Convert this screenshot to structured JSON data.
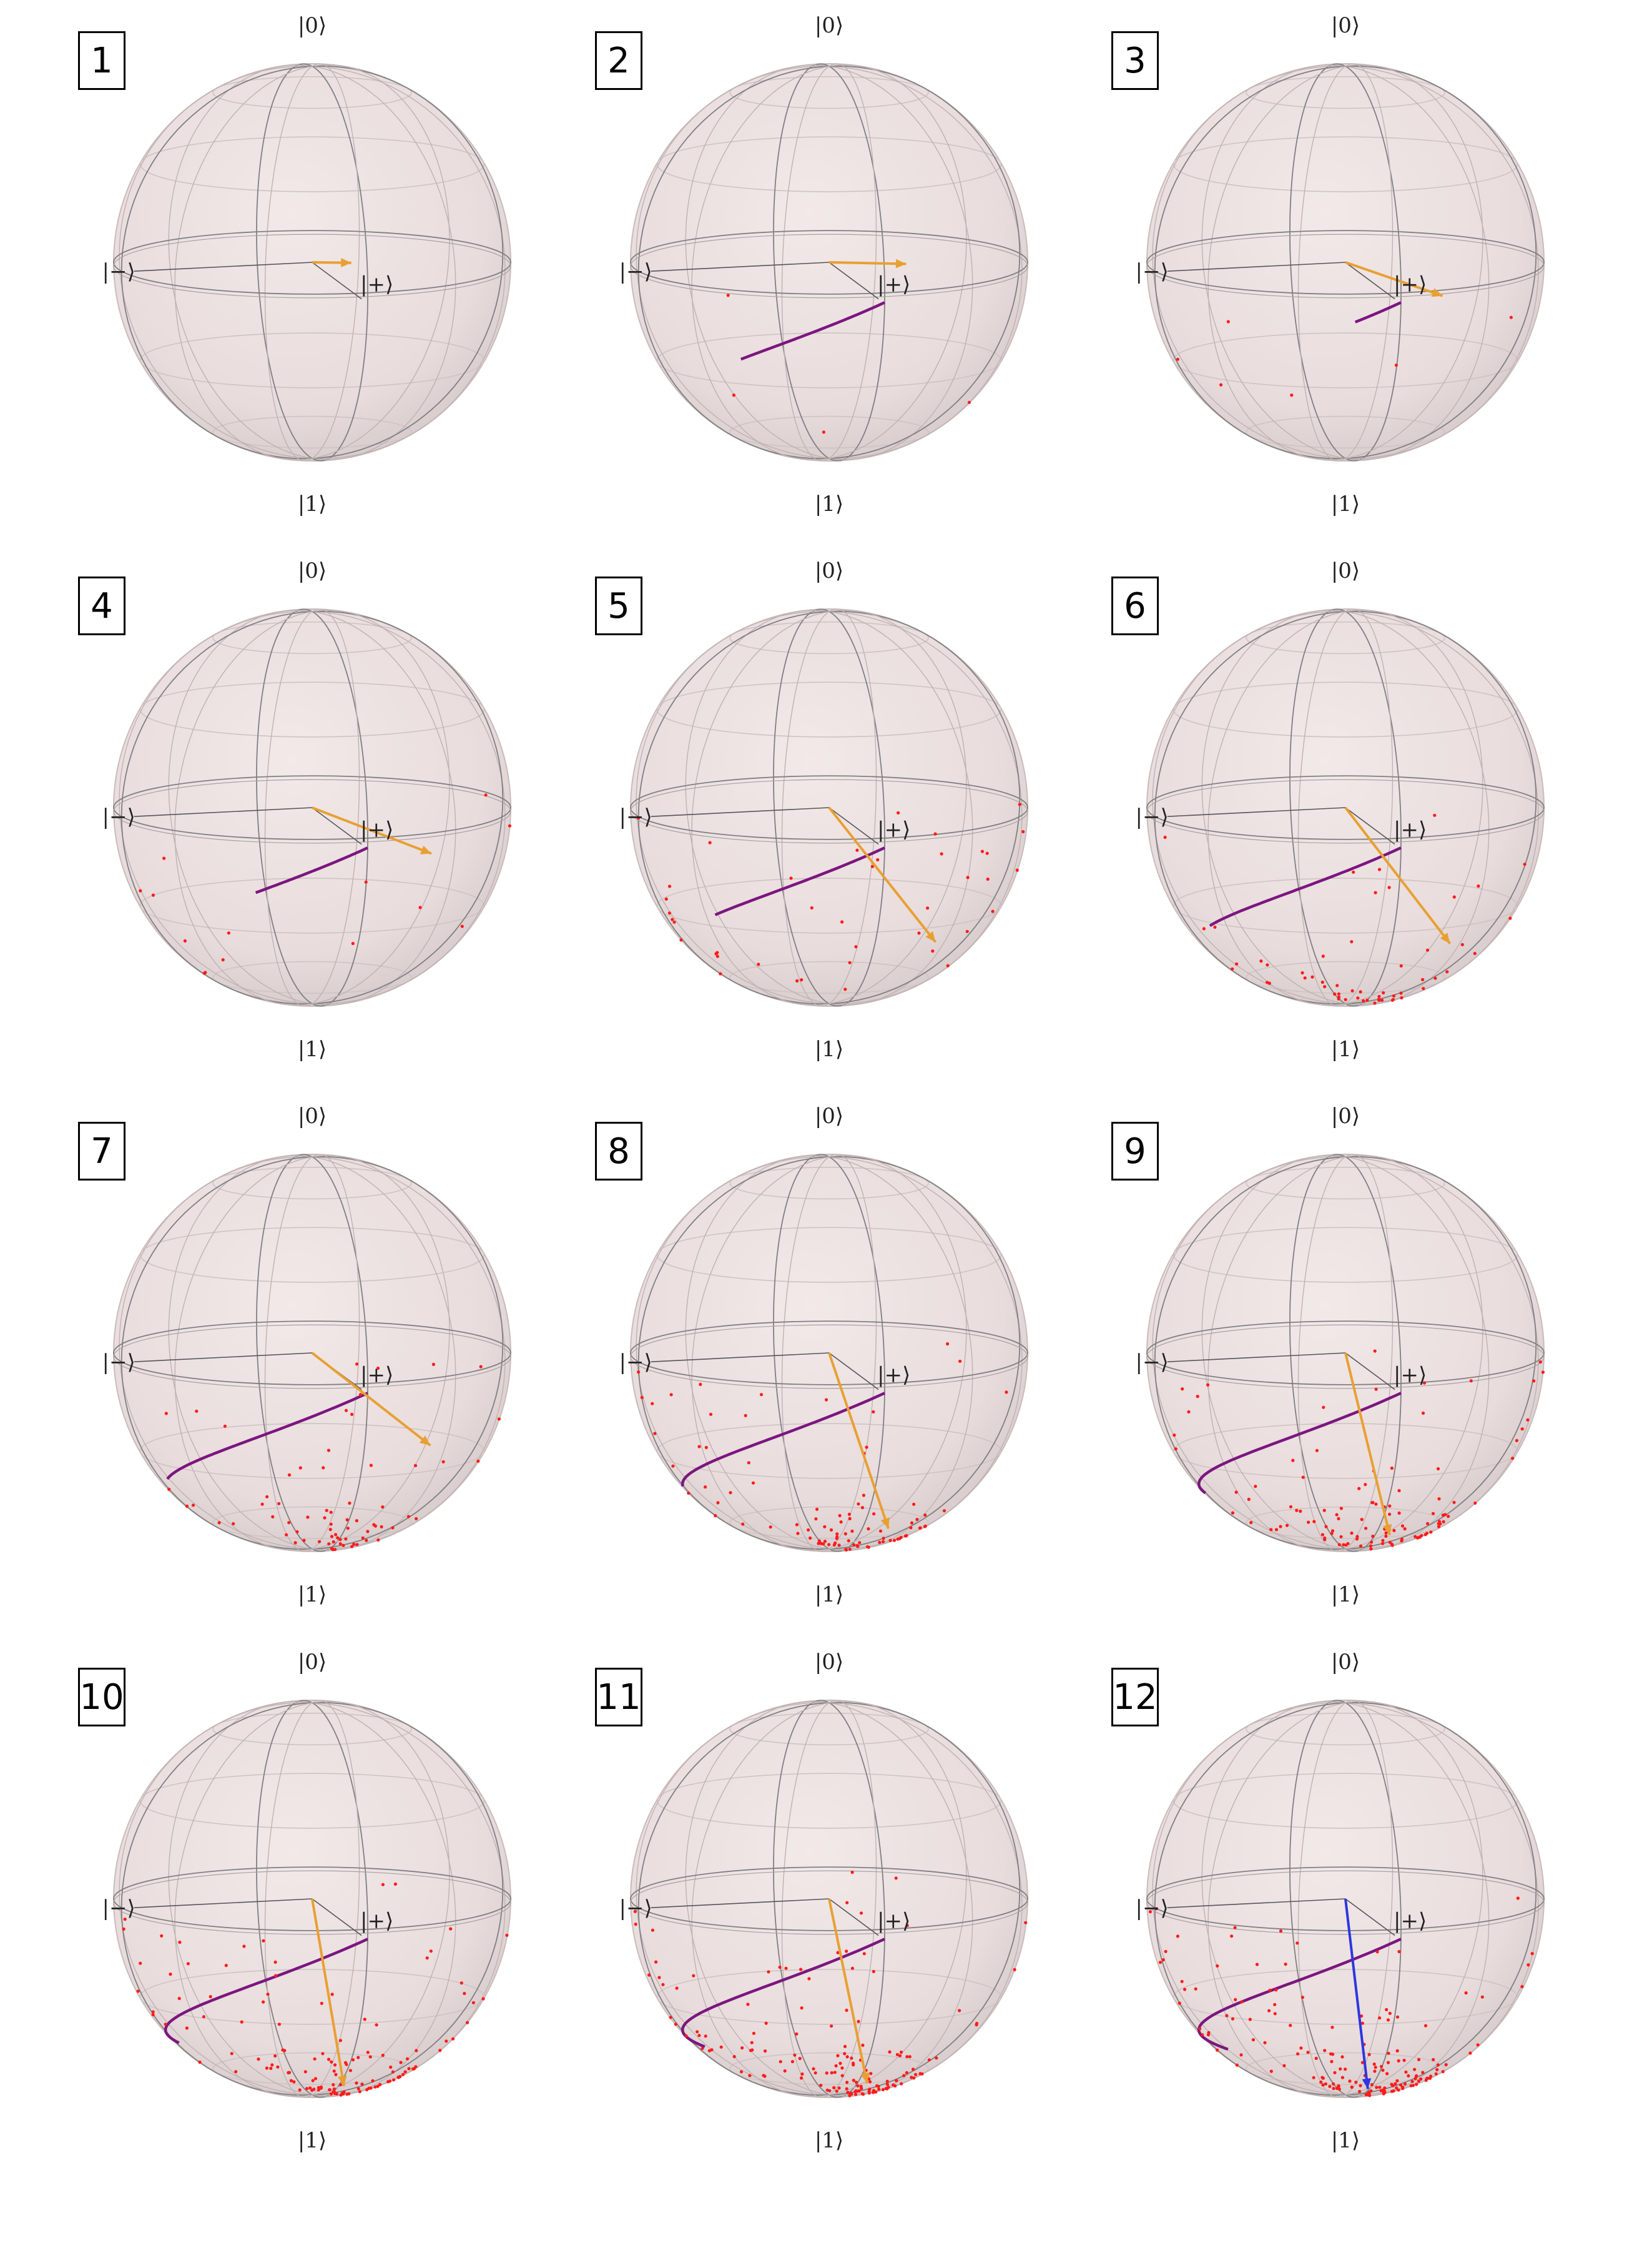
{
  "labels": {
    "north": "|0⟩",
    "south": "|1⟩",
    "plus": "|+⟩",
    "minus": "|−⟩"
  },
  "colors": {
    "sphere": "#e9dcdc",
    "grid": "#808080",
    "arrow": "#e8a032",
    "final_arrow": "#2d36e0",
    "trajectory": "#7b167f",
    "points": "#ff1a1a"
  },
  "panels": [
    {
      "index": "1",
      "arrow_color": "arrow",
      "arrow": [
        0.72,
        0.28,
        0.06
      ],
      "trail": [],
      "dots": 0
    },
    {
      "index": "2",
      "arrow_color": "arrow",
      "arrow": [
        0.84,
        0.82,
        0.05
      ],
      "trail": [
        [
          0.0,
          1.0
        ]
      ],
      "dots": 4
    },
    {
      "index": "3",
      "arrow_color": "arrow",
      "arrow": [
        0.9,
        1.1,
        -0.12
      ],
      "trail": [
        [
          0.0,
          0.3
        ]
      ],
      "dots": 6
    },
    {
      "index": "4",
      "arrow_color": "arrow",
      "arrow": [
        0.94,
        1.5,
        -0.2
      ],
      "trail": [
        [
          0.0,
          0.75
        ]
      ],
      "dots": 14
    },
    {
      "index": "5",
      "arrow_color": "arrow",
      "arrow": [
        0.96,
        2.55,
        -0.7
      ],
      "trail": [
        [
          0.0,
          1.25
        ]
      ],
      "dots": 40
    },
    {
      "index": "6",
      "arrow_color": "arrow",
      "arrow": [
        0.96,
        2.9,
        -0.72
      ],
      "trail": [
        [
          0.0,
          1.55
        ]
      ],
      "dots": 55
    },
    {
      "index": "7",
      "arrow_color": "arrow",
      "arrow": [
        0.98,
        4.05,
        -0.55
      ],
      "trail": [
        [
          0.0,
          1.8
        ]
      ],
      "dots": 70
    },
    {
      "index": "8",
      "arrow_color": "arrow",
      "arrow": [
        0.99,
        3.35,
        -0.92
      ],
      "trail": [
        [
          0.0,
          2.05
        ]
      ],
      "dots": 90
    },
    {
      "index": "9",
      "arrow_color": "arrow",
      "arrow": [
        0.99,
        3.55,
        -0.95
      ],
      "trail": [
        [
          0.0,
          2.3
        ]
      ],
      "dots": 110
    },
    {
      "index": "10",
      "arrow_color": "arrow",
      "arrow": [
        0.99,
        3.45,
        -0.97
      ],
      "trail": [
        [
          0.0,
          2.45
        ]
      ],
      "dots": 130
    },
    {
      "index": "11",
      "arrow_color": "arrow",
      "arrow": [
        0.99,
        3.65,
        -0.96
      ],
      "trail": [
        [
          0.0,
          2.6
        ]
      ],
      "dots": 150
    },
    {
      "index": "12",
      "arrow_color": "final_arrow",
      "arrow": [
        0.99,
        3.55,
        -0.98
      ],
      "trail": [
        [
          0.0,
          2.7
        ]
      ],
      "dots": 165
    }
  ]
}
